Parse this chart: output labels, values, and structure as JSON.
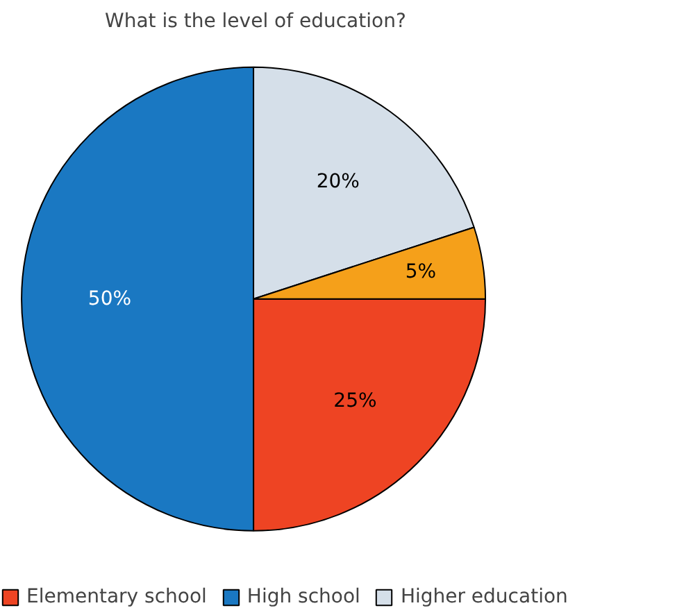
{
  "chart_data": {
    "type": "pie",
    "title": "What is the level of education?",
    "categories": [
      "Elementary school",
      "High school",
      "Higher education",
      null
    ],
    "values": [
      25,
      50,
      20,
      5
    ],
    "colors": [
      "#ee4423",
      "#1a78c2",
      "#d5dfe9",
      "#f5a01a"
    ],
    "value_labels": [
      "25%",
      "50%",
      "20%",
      "5%"
    ],
    "legend": "bottom"
  }
}
